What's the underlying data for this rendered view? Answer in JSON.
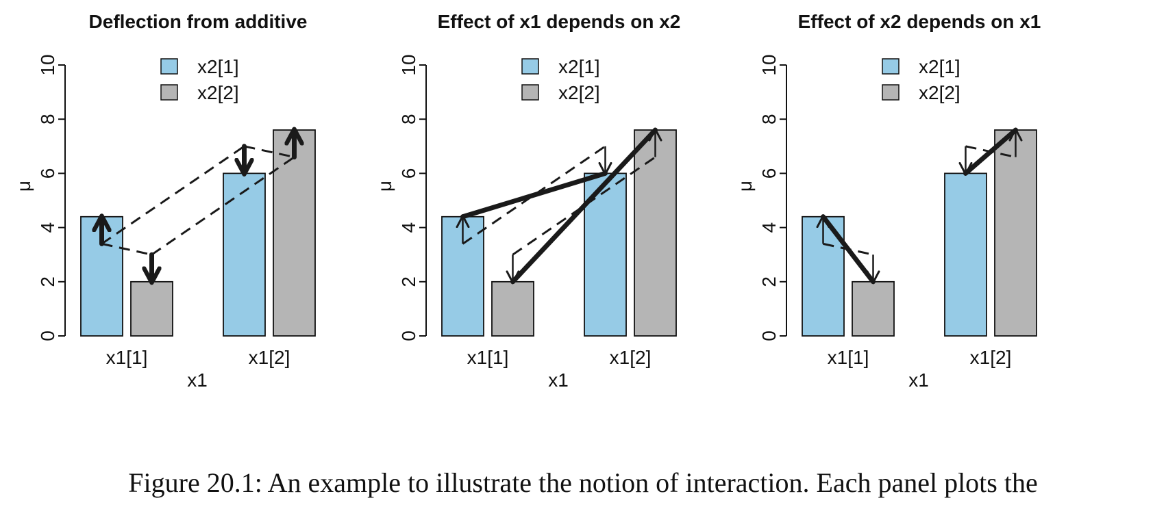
{
  "chart_data": [
    {
      "type": "bar",
      "title": "Deflection from additive",
      "xlabel": "x1",
      "ylabel": "μ",
      "categories": [
        "x1[1]",
        "x1[2]"
      ],
      "series": [
        {
          "name": "x2[1]",
          "values": [
            4.4,
            6.0
          ]
        },
        {
          "name": "x2[2]",
          "values": [
            2.0,
            7.6
          ]
        }
      ],
      "ylim": [
        0,
        10
      ],
      "yticks": [
        "0",
        "2",
        "4",
        "6",
        "8",
        "10"
      ],
      "legend": "top-center",
      "grid": false
    },
    {
      "type": "bar",
      "title": "Effect of x1 depends on x2",
      "xlabel": "x1",
      "ylabel": "μ",
      "categories": [
        "x1[1]",
        "x1[2]"
      ],
      "series": [
        {
          "name": "x2[1]",
          "values": [
            4.4,
            6.0
          ]
        },
        {
          "name": "x2[2]",
          "values": [
            2.0,
            7.6
          ]
        }
      ],
      "ylim": [
        0,
        10
      ],
      "yticks": [
        "0",
        "2",
        "4",
        "6",
        "8",
        "10"
      ],
      "legend": "top-center",
      "grid": false
    },
    {
      "type": "bar",
      "title": "Effect of x2 depends on x1",
      "xlabel": "x1",
      "ylabel": "μ",
      "categories": [
        "x1[1]",
        "x1[2]"
      ],
      "series": [
        {
          "name": "x2[1]",
          "values": [
            4.4,
            6.0
          ]
        },
        {
          "name": "x2[2]",
          "values": [
            2.0,
            7.6
          ]
        }
      ],
      "ylim": [
        0,
        10
      ],
      "yticks": [
        "0",
        "2",
        "4",
        "6",
        "8",
        "10"
      ],
      "legend": "top-center",
      "grid": false
    }
  ],
  "colors": {
    "x2_1": "#96cbe6",
    "x2_2": "#b5b5b5",
    "arrow": "#1a1a1a"
  },
  "additive_values": [
    3.4,
    3.0,
    7.0,
    6.6
  ],
  "caption": "Figure 20.1: An example to illustrate the notion of interaction. Each panel plots the"
}
